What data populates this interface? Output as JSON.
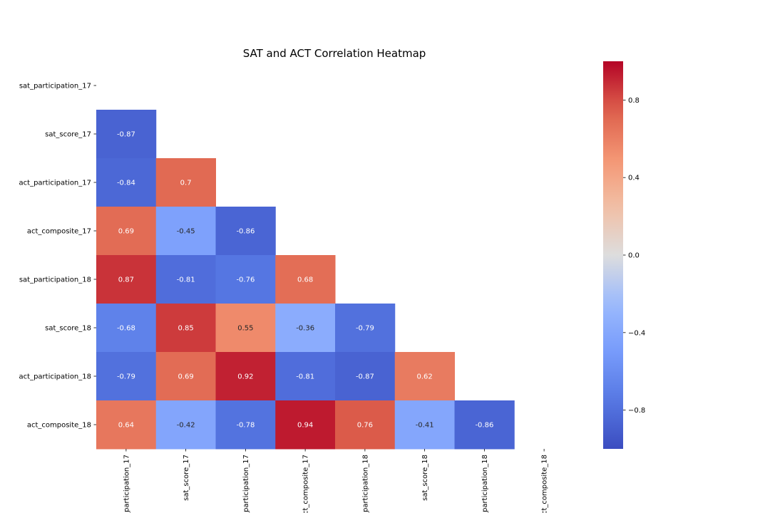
{
  "chart_data": {
    "type": "heatmap",
    "title": "SAT and ACT Correlation Heatmap",
    "xlabel": "",
    "ylabel": "",
    "variables": [
      "sat_participation_17",
      "sat_score_17",
      "act_participation_17",
      "act_composite_17",
      "sat_participation_18",
      "sat_score_18",
      "act_participation_18",
      "act_composite_18"
    ],
    "mask": "upper-triangle-including-diagonal",
    "values": [
      [
        null,
        null,
        null,
        null,
        null,
        null,
        null,
        null
      ],
      [
        -0.87,
        null,
        null,
        null,
        null,
        null,
        null,
        null
      ],
      [
        -0.84,
        0.7,
        null,
        null,
        null,
        null,
        null,
        null
      ],
      [
        0.69,
        -0.45,
        -0.86,
        null,
        null,
        null,
        null,
        null
      ],
      [
        0.87,
        -0.81,
        -0.76,
        0.68,
        null,
        null,
        null,
        null
      ],
      [
        -0.68,
        0.85,
        0.55,
        -0.36,
        -0.79,
        null,
        null,
        null
      ],
      [
        -0.79,
        0.69,
        0.92,
        -0.81,
        -0.87,
        0.62,
        null,
        null
      ],
      [
        0.64,
        -0.42,
        -0.78,
        0.94,
        0.76,
        -0.41,
        -0.86,
        null
      ]
    ],
    "colormap": "coolwarm",
    "vmin": -1.0,
    "vmax": 1.0,
    "colorbar_ticks": [
      "0.8",
      "0.4",
      "0.0",
      "−0.4",
      "−0.8"
    ],
    "colorbar_tick_values": [
      0.8,
      0.4,
      0.0,
      -0.4,
      -0.8
    ],
    "colorbar_position": "right"
  }
}
